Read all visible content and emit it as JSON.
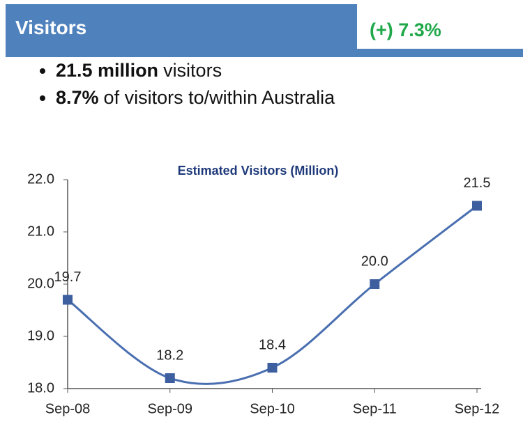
{
  "header": {
    "title": "Visitors",
    "change": "(+) 7.3%"
  },
  "bullets": [
    {
      "bold": "21.5 million",
      "text": "visitors"
    },
    {
      "bold": "8.7%",
      "text": "of visitors to/within Australia"
    }
  ],
  "chart_data": {
    "type": "line",
    "title": "Estimated Visitors (Million)",
    "categories": [
      "Sep-08",
      "Sep-09",
      "Sep-10",
      "Sep-11",
      "Sep-12"
    ],
    "values": [
      19.7,
      18.2,
      18.4,
      20.0,
      21.5
    ],
    "value_labels": [
      "19.7",
      "18.2",
      "18.4",
      "20.0",
      "21.5"
    ],
    "color": "#4a6fb0",
    "ylim": [
      18,
      22
    ],
    "yticks": [
      {
        "value": 18,
        "label": "18.0"
      },
      {
        "value": 19,
        "label": "19.0"
      },
      {
        "value": 20,
        "label": "20.0"
      },
      {
        "value": 21,
        "label": "21.0"
      },
      {
        "value": 22,
        "label": "22.0"
      }
    ]
  }
}
